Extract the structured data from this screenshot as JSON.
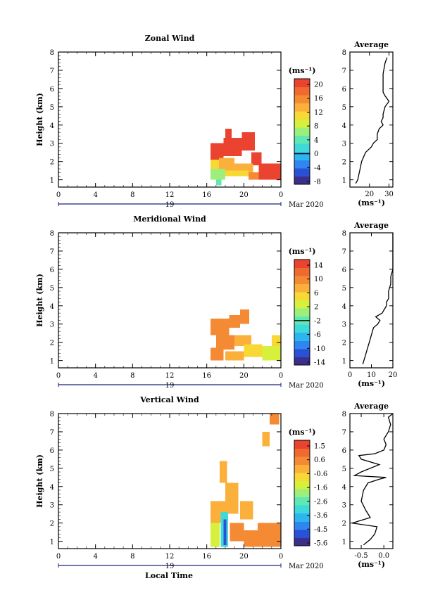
{
  "panels": [
    {
      "title": "Zonal Wind",
      "unit": "(ms⁻¹)",
      "colorbar_ticks": [
        "20",
        "16",
        "12",
        "8",
        "4",
        "0",
        "-4",
        "-8"
      ],
      "colorbar_zero_index": 5,
      "avg_title": "Average",
      "avg_xticks": [
        {
          "v": 20,
          "label": "20"
        },
        {
          "v": 30,
          "label": "30"
        }
      ],
      "avg_xlim": [
        10,
        32
      ],
      "avg_xlabel": "(ms⁻¹)"
    },
    {
      "title": "Meridional Wind",
      "unit": "(ms⁻¹)",
      "colorbar_ticks": [
        "14",
        "10",
        "6",
        "2",
        "-2",
        "-6",
        "-10",
        "-14"
      ],
      "colorbar_zero_index": 4,
      "avg_title": "Average",
      "avg_xticks": [
        {
          "v": 0,
          "label": "0"
        },
        {
          "v": 10,
          "label": "10"
        },
        {
          "v": 20,
          "label": "20"
        }
      ],
      "avg_xlim": [
        0,
        20
      ],
      "avg_xlabel": "(ms⁻¹)"
    },
    {
      "title": "Vertical Wind",
      "unit": "(ms⁻¹)",
      "colorbar_ticks": [
        "1.5",
        "0.6",
        "-0.6",
        "-1.6",
        "-2.6",
        "-3.6",
        "-4.5",
        "-5.6"
      ],
      "colorbar_zero_index": -1,
      "avg_title": "Average",
      "avg_xticks": [
        {
          "v": -0.5,
          "label": "-0.5"
        },
        {
          "v": 0,
          "label": "0.0"
        }
      ],
      "avg_xlim": [
        -0.75,
        0.2
      ],
      "avg_xlabel": "(ms⁻¹)"
    }
  ],
  "ylabel": "Height (km)",
  "xticks": [
    "0",
    "4",
    "8",
    "12",
    "16",
    "20",
    "0"
  ],
  "yticks": [
    "1",
    "2",
    "3",
    "4",
    "5",
    "6",
    "7",
    "8"
  ],
  "date_day": "19",
  "date_month": "Mar 2020",
  "xlabel": "Local Time",
  "colormap": [
    "#3b2f8c",
    "#2a50d8",
    "#2e86ee",
    "#2db5f0",
    "#3ed9d8",
    "#5fe8b4",
    "#9cef7a",
    "#d6f03d",
    "#f7d834",
    "#fbb03c",
    "#f58a35",
    "#ef6a2e",
    "#ea4330"
  ],
  "chart_data": [
    {
      "type": "heatmap",
      "title": "Zonal Wind",
      "xlabel": "Local Time",
      "ylabel": "Height (km)",
      "xlim": [
        0,
        24
      ],
      "ylim": [
        0.6,
        8.0
      ],
      "clim": [
        -10,
        22
      ],
      "colorbar_label": "(ms⁻¹)",
      "x_ticks": [
        0,
        4,
        8,
        12,
        16,
        20,
        24
      ],
      "y_ticks": [
        1,
        2,
        3,
        4,
        5,
        6,
        7,
        8
      ],
      "regions": [
        {
          "x": [
            16.4,
            17.8
          ],
          "y": [
            2.1,
            3.0
          ],
          "value": 21
        },
        {
          "x": [
            17.8,
            19.8
          ],
          "y": [
            2.3,
            3.3
          ],
          "value": 22
        },
        {
          "x": [
            18.0,
            18.7
          ],
          "y": [
            3.3,
            3.8
          ],
          "value": 21
        },
        {
          "x": [
            19.8,
            21.2
          ],
          "y": [
            2.6,
            3.6
          ],
          "value": 21
        },
        {
          "x": [
            20.8,
            21.9
          ],
          "y": [
            1.8,
            2.5
          ],
          "value": 20
        },
        {
          "x": [
            21.6,
            24.0
          ],
          "y": [
            1.0,
            1.9
          ],
          "value": 20
        },
        {
          "x": [
            16.4,
            17.3
          ],
          "y": [
            1.6,
            2.1
          ],
          "value": 10
        },
        {
          "x": [
            17.3,
            19.0
          ],
          "y": [
            1.5,
            2.2
          ],
          "value": 14
        },
        {
          "x": [
            19.0,
            21.0
          ],
          "y": [
            1.3,
            1.9
          ],
          "value": 13
        },
        {
          "x": [
            16.4,
            18.0
          ],
          "y": [
            1.0,
            1.6
          ],
          "value": 6
        },
        {
          "x": [
            18.0,
            20.5
          ],
          "y": [
            1.2,
            1.5
          ],
          "value": 11
        },
        {
          "x": [
            17.0,
            17.6
          ],
          "y": [
            0.7,
            1.0
          ],
          "value": 3
        },
        {
          "x": [
            20.5,
            21.6
          ],
          "y": [
            1.0,
            1.4
          ],
          "value": 16
        }
      ],
      "profile": {
        "height": [
          0.8,
          1.0,
          1.5,
          2.0,
          2.5,
          2.8,
          3.0,
          3.2,
          3.5,
          3.8,
          4.0,
          4.2,
          4.4,
          4.6,
          5.0,
          5.3,
          5.6,
          5.8,
          6.0,
          6.4,
          6.8,
          7.4,
          7.7
        ],
        "value": [
          13,
          14,
          15,
          16,
          18,
          21,
          22,
          24,
          24,
          25,
          27,
          26,
          27,
          27,
          28,
          30,
          28,
          27,
          27,
          27,
          27,
          28,
          29
        ]
      }
    },
    {
      "type": "heatmap",
      "title": "Meridional Wind",
      "xlabel": "Local Time",
      "ylabel": "Height (km)",
      "xlim": [
        0,
        24
      ],
      "ylim": [
        0.6,
        8.0
      ],
      "clim": [
        -16,
        16
      ],
      "colorbar_label": "(ms⁻¹)",
      "x_ticks": [
        0,
        4,
        8,
        12,
        16,
        20,
        24
      ],
      "y_ticks": [
        1,
        2,
        3,
        4,
        5,
        6,
        7,
        8
      ],
      "regions": [
        {
          "x": [
            16.4,
            18.4
          ],
          "y": [
            2.4,
            3.3
          ],
          "value": 9
        },
        {
          "x": [
            18.4,
            19.6
          ],
          "y": [
            2.8,
            3.5
          ],
          "value": 10
        },
        {
          "x": [
            19.6,
            20.6
          ],
          "y": [
            3.0,
            3.8
          ],
          "value": 11
        },
        {
          "x": [
            17.0,
            19.0
          ],
          "y": [
            1.6,
            2.4
          ],
          "value": 9
        },
        {
          "x": [
            16.4,
            17.8
          ],
          "y": [
            1.0,
            1.7
          ],
          "value": 11
        },
        {
          "x": [
            19.0,
            20.8
          ],
          "y": [
            1.8,
            2.4
          ],
          "value": 8
        },
        {
          "x": [
            20.0,
            22.0
          ],
          "y": [
            1.2,
            1.9
          ],
          "value": 6
        },
        {
          "x": [
            22.0,
            24.0
          ],
          "y": [
            1.0,
            1.8
          ],
          "value": 3
        },
        {
          "x": [
            23.0,
            24.0
          ],
          "y": [
            1.8,
            2.4
          ],
          "value": 4
        },
        {
          "x": [
            18.0,
            20.0
          ],
          "y": [
            1.0,
            1.5
          ],
          "value": 8
        }
      ],
      "profile": {
        "height": [
          0.8,
          1.2,
          1.6,
          2.0,
          2.4,
          2.8,
          3.0,
          3.2,
          3.4,
          3.6,
          3.8,
          4.0,
          4.2,
          4.4,
          4.8,
          5.2,
          5.6,
          6.0,
          6.4,
          6.8,
          7.2,
          7.6,
          8.0
        ],
        "value": [
          6,
          7,
          8,
          9,
          10,
          11,
          13,
          14,
          12,
          15,
          16,
          17,
          17,
          18,
          18,
          19,
          19,
          20,
          20,
          20,
          20,
          20,
          20
        ]
      }
    },
    {
      "type": "heatmap",
      "title": "Vertical Wind",
      "xlabel": "Local Time",
      "ylabel": "Height (km)",
      "xlim": [
        0,
        24
      ],
      "ylim": [
        0.6,
        8.0
      ],
      "clim": [
        -6.0,
        2.0
      ],
      "colorbar_label": "(ms⁻¹)",
      "x_ticks": [
        0,
        4,
        8,
        12,
        16,
        20,
        24
      ],
      "y_ticks": [
        1,
        2,
        3,
        4,
        5,
        6,
        7,
        8
      ],
      "regions": [
        {
          "x": [
            16.4,
            18.0
          ],
          "y": [
            2.0,
            3.2
          ],
          "value": -0.3
        },
        {
          "x": [
            18.0,
            19.4
          ],
          "y": [
            2.5,
            4.2
          ],
          "value": -0.1
        },
        {
          "x": [
            17.4,
            18.2
          ],
          "y": [
            4.2,
            5.4
          ],
          "value": -0.2
        },
        {
          "x": [
            19.6,
            21.0
          ],
          "y": [
            2.2,
            3.2
          ],
          "value": -0.2
        },
        {
          "x": [
            16.4,
            17.4
          ],
          "y": [
            0.7,
            2.0
          ],
          "value": -1.1
        },
        {
          "x": [
            17.5,
            18.3
          ],
          "y": [
            0.7,
            2.6
          ],
          "value": -3.3
        },
        {
          "x": [
            17.8,
            18.1
          ],
          "y": [
            0.8,
            2.2
          ],
          "value": -4.9
        },
        {
          "x": [
            18.5,
            20.0
          ],
          "y": [
            1.0,
            2.0
          ],
          "value": 0.2
        },
        {
          "x": [
            20.0,
            24.0
          ],
          "y": [
            0.7,
            1.6
          ],
          "value": 0.5
        },
        {
          "x": [
            21.5,
            24.0
          ],
          "y": [
            1.6,
            2.0
          ],
          "value": 0.4
        },
        {
          "x": [
            22.0,
            22.8
          ],
          "y": [
            6.2,
            7.0
          ],
          "value": 0.1
        },
        {
          "x": [
            22.8,
            23.8
          ],
          "y": [
            7.4,
            8.0
          ],
          "value": 0.2
        }
      ],
      "profile": {
        "height": [
          0.8,
          1.1,
          1.4,
          1.8,
          2.0,
          2.3,
          2.7,
          3.2,
          3.8,
          4.2,
          4.4,
          4.5,
          4.6,
          4.8,
          5.2,
          5.5,
          5.7,
          5.8,
          6.0,
          6.3,
          6.6,
          7.0,
          7.4,
          7.8,
          8.0
        ],
        "value": [
          -0.45,
          -0.3,
          -0.2,
          -0.15,
          -0.7,
          -0.3,
          -0.4,
          -0.5,
          -0.45,
          -0.35,
          -0.1,
          0.05,
          -0.65,
          -0.5,
          -0.1,
          -0.5,
          -0.55,
          -0.2,
          0.0,
          0.05,
          0.0,
          0.1,
          0.15,
          0.1,
          0.2
        ]
      }
    }
  ]
}
